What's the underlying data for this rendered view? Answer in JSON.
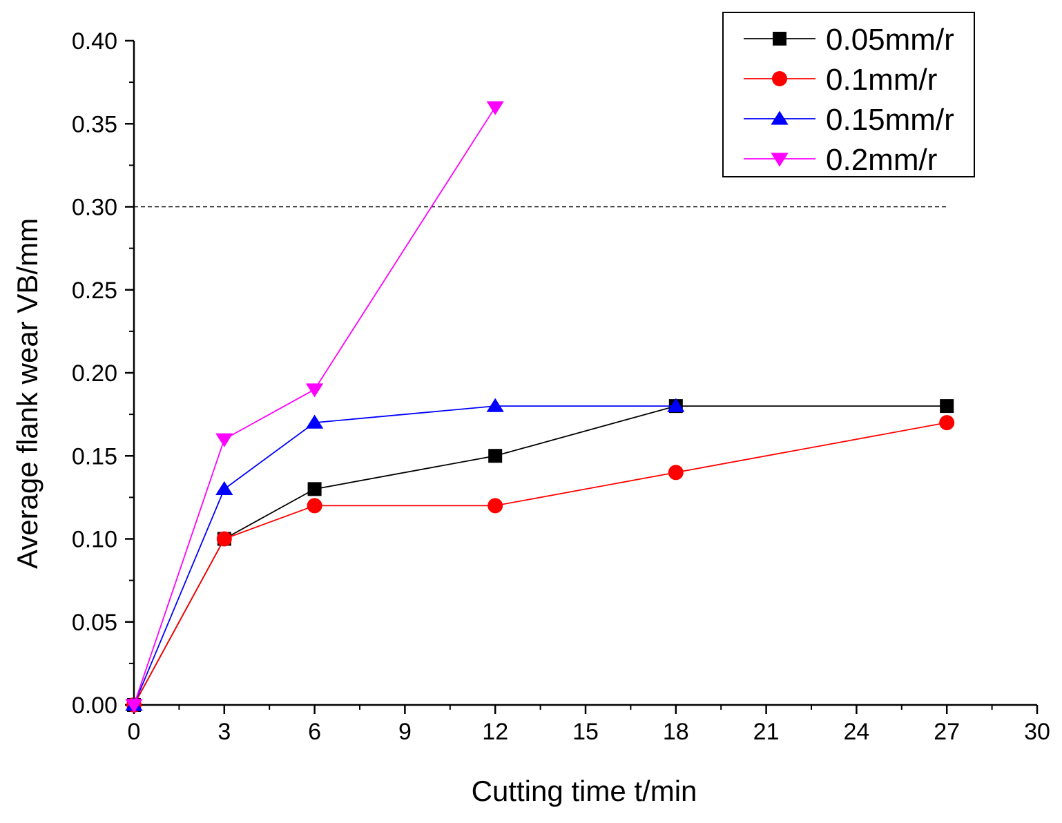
{
  "chart_data": {
    "type": "line",
    "xlabel": "Cutting time t/min",
    "ylabel": "Average flank wear VB/mm",
    "xlim": [
      0,
      30
    ],
    "ylim": [
      0,
      0.4
    ],
    "x_ticks": [
      {
        "value": 0,
        "label": "0"
      },
      {
        "value": 3,
        "label": "3"
      },
      {
        "value": 6,
        "label": "6"
      },
      {
        "value": 9,
        "label": "9"
      },
      {
        "value": 12,
        "label": "12"
      },
      {
        "value": 15,
        "label": "15"
      },
      {
        "value": 18,
        "label": "18"
      },
      {
        "value": 21,
        "label": "21"
      },
      {
        "value": 24,
        "label": "24"
      },
      {
        "value": 27,
        "label": "27"
      },
      {
        "value": 30,
        "label": "30"
      }
    ],
    "y_ticks": [
      {
        "value": 0,
        "label": "0.00"
      },
      {
        "value": 0.05,
        "label": "0.05"
      },
      {
        "value": 0.1,
        "label": "0.10"
      },
      {
        "value": 0.15,
        "label": "0.15"
      },
      {
        "value": 0.2,
        "label": "0.20"
      },
      {
        "value": 0.25,
        "label": "0.25"
      },
      {
        "value": 0.3,
        "label": "0.30"
      },
      {
        "value": 0.35,
        "label": "0.35"
      },
      {
        "value": 0.4,
        "label": "0.40"
      }
    ],
    "reference_line": {
      "y": 0.3,
      "x_from": 0,
      "x_to": 27,
      "style": "dashed"
    },
    "legend_position": "top-right",
    "series": [
      {
        "name": "0.05mm/r",
        "color": "#000000",
        "marker": "square",
        "x": [
          0,
          3,
          6,
          12,
          18,
          27
        ],
        "y": [
          0,
          0.1,
          0.13,
          0.15,
          0.18,
          0.18
        ]
      },
      {
        "name": "0.1mm/r",
        "color": "#ff0000",
        "marker": "circle",
        "x": [
          0,
          3,
          6,
          12,
          18,
          27
        ],
        "y": [
          0,
          0.1,
          0.12,
          0.12,
          0.14,
          0.17
        ]
      },
      {
        "name": "0.15mm/r",
        "color": "#0000ff",
        "marker": "triangle-up",
        "x": [
          0,
          3,
          6,
          12,
          18
        ],
        "y": [
          0,
          0.13,
          0.17,
          0.18,
          0.18
        ]
      },
      {
        "name": "0.2mm/r",
        "color": "#ff00ff",
        "marker": "triangle-down",
        "x": [
          0,
          3,
          6,
          12
        ],
        "y": [
          0,
          0.16,
          0.19,
          0.36
        ]
      }
    ]
  }
}
